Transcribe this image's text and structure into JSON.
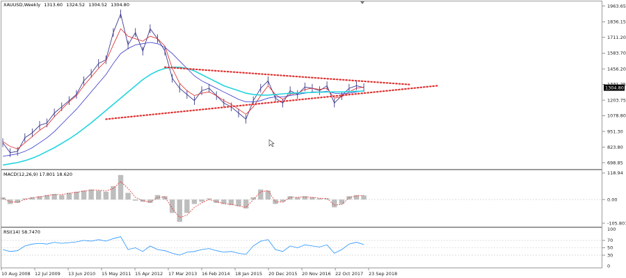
{
  "chart_data": {
    "type": "line",
    "symbol": "XAUUSD",
    "timeframe": "Weekly",
    "ohlc": {
      "open": "1313.60",
      "high": "1324.52",
      "low": "1304.52",
      "close": "1304.80"
    },
    "current_price_label": "1304.80",
    "price_axis": {
      "ticks": [
        "1963.65",
        "1836.15",
        "1711.20",
        "1583.70",
        "1456.20",
        "1331.25",
        "1203.75",
        "1078.80",
        "951.30",
        "823.80",
        "698.85"
      ],
      "ticks_values": [
        1963.65,
        1836.15,
        1711.2,
        1583.7,
        1456.2,
        1331.25,
        1203.75,
        1078.8,
        951.3,
        823.8,
        698.85
      ],
      "ylim": [
        660,
        1990
      ]
    },
    "x_axis": {
      "labels": [
        "10 Aug 2008",
        "12 Jul 2009",
        "13 Jun 2010",
        "15 May 2011",
        "15 Apr 2012",
        "17 Mar 2013",
        "16 Feb 2014",
        "18 Jan 2015",
        "20 Dec 2015",
        "20 Nov 2016",
        "22 Oct 2017",
        "23 Sep 2018"
      ]
    },
    "series": [
      {
        "name": "",
        "kind": "price",
        "color": "#3a3a8c",
        "values": [
          860,
          780,
          790,
          900,
          940,
          1000,
          1020,
          1100,
          1150,
          1200,
          1250,
          1360,
          1420,
          1500,
          1530,
          1750,
          1900,
          1650,
          1750,
          1600,
          1780,
          1700,
          1600,
          1380,
          1300,
          1250,
          1200,
          1280,
          1300,
          1240,
          1180,
          1150,
          1100,
          1050,
          1200,
          1300,
          1360,
          1220,
          1180,
          1280,
          1250,
          1310,
          1300,
          1280,
          1320,
          1180,
          1240,
          1300,
          1320,
          1305
        ]
      },
      {
        "name": "",
        "kind": "ma-fast",
        "color": "#dd2222",
        "values": [
          870,
          830,
          810,
          860,
          910,
          960,
          1000,
          1070,
          1130,
          1190,
          1240,
          1320,
          1390,
          1460,
          1520,
          1650,
          1780,
          1720,
          1700,
          1680,
          1720,
          1700,
          1640,
          1460,
          1340,
          1280,
          1240,
          1260,
          1270,
          1240,
          1200,
          1170,
          1130,
          1090,
          1150,
          1240,
          1320,
          1250,
          1210,
          1250,
          1260,
          1290,
          1300,
          1290,
          1300,
          1220,
          1230,
          1270,
          1300,
          1310
        ]
      },
      {
        "name": "",
        "kind": "ma-mid",
        "color": "#3333cc",
        "values": [
          750,
          760,
          770,
          790,
          820,
          860,
          900,
          950,
          1010,
          1070,
          1130,
          1200,
          1270,
          1340,
          1410,
          1500,
          1580,
          1620,
          1650,
          1660,
          1670,
          1660,
          1630,
          1580,
          1520,
          1460,
          1400,
          1360,
          1330,
          1300,
          1270,
          1240,
          1210,
          1190,
          1190,
          1200,
          1220,
          1230,
          1230,
          1240,
          1250,
          1260,
          1270,
          1270,
          1275,
          1260,
          1255,
          1260,
          1270,
          1280
        ]
      },
      {
        "name": "",
        "kind": "ma-slow",
        "color": "#22d3dd",
        "values": [
          680,
          690,
          700,
          715,
          735,
          760,
          790,
          820,
          855,
          890,
          930,
          975,
          1020,
          1070,
          1120,
          1170,
          1220,
          1270,
          1320,
          1370,
          1410,
          1440,
          1460,
          1470,
          1470,
          1460,
          1440,
          1410,
          1380,
          1350,
          1320,
          1300,
          1280,
          1260,
          1250,
          1245,
          1245,
          1250,
          1255,
          1260,
          1262,
          1264,
          1266,
          1268,
          1270,
          1270,
          1270,
          1272,
          1275,
          1278
        ]
      }
    ],
    "trendlines": [
      {
        "name": "",
        "from": [
          22,
          1470
        ],
        "to": [
          49.5,
          1340
        ]
      },
      {
        "name": "",
        "from": [
          14,
          1050
        ],
        "to": [
          49.5,
          1290
        ]
      }
    ],
    "indicators": {
      "macd": {
        "label": "MACD(12,26,9) 17.801 18.620",
        "ticks": [
          "118.94",
          "0.00",
          "-105.807"
        ],
        "ticks_values": [
          118.94,
          0,
          -105.807
        ],
        "ylim": [
          -115,
          125
        ],
        "histogram": [
          10,
          -20,
          -15,
          5,
          10,
          15,
          20,
          25,
          20,
          30,
          35,
          40,
          45,
          40,
          35,
          60,
          110,
          30,
          -5,
          -10,
          -15,
          20,
          15,
          -60,
          -100,
          -60,
          -20,
          -10,
          5,
          -15,
          -20,
          -25,
          -30,
          -40,
          10,
          45,
          40,
          -20,
          -10,
          15,
          10,
          15,
          10,
          5,
          5,
          -35,
          -20,
          15,
          20,
          18
        ],
        "signal": [
          5,
          -10,
          -12,
          0,
          8,
          12,
          18,
          22,
          22,
          28,
          32,
          38,
          42,
          42,
          38,
          50,
          80,
          50,
          10,
          -5,
          -12,
          10,
          12,
          -40,
          -80,
          -70,
          -35,
          -15,
          0,
          -10,
          -18,
          -22,
          -28,
          -35,
          0,
          35,
          40,
          -10,
          -12,
          10,
          10,
          12,
          10,
          6,
          5,
          -25,
          -22,
          8,
          16,
          18.6
        ]
      },
      "rsi": {
        "label": "RSI(14) 58.7470",
        "ticks": [
          "100",
          "70",
          "50",
          "30",
          "0"
        ],
        "ticks_values": [
          100,
          70,
          50,
          30,
          0
        ],
        "ylim": [
          0,
          100
        ],
        "values": [
          45,
          40,
          42,
          55,
          60,
          62,
          60,
          65,
          62,
          64,
          66,
          70,
          68,
          72,
          68,
          75,
          80,
          45,
          50,
          40,
          55,
          45,
          42,
          35,
          30,
          38,
          40,
          45,
          48,
          42,
          38,
          40,
          35,
          32,
          55,
          68,
          72,
          45,
          40,
          55,
          50,
          58,
          55,
          52,
          58,
          35,
          45,
          60,
          65,
          58.7
        ]
      }
    }
  }
}
